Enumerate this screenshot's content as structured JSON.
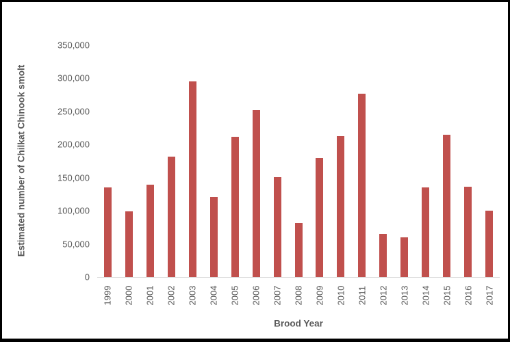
{
  "chart_data": {
    "type": "bar",
    "title": "",
    "categories": [
      "1999",
      "2000",
      "2001",
      "2002",
      "2003",
      "2004",
      "2005",
      "2006",
      "2007",
      "2008",
      "2009",
      "2010",
      "2011",
      "2012",
      "2013",
      "2014",
      "2015",
      "2016",
      "2017"
    ],
    "values": [
      135000,
      99000,
      139000,
      182000,
      295000,
      121000,
      212000,
      252000,
      151000,
      82000,
      180000,
      213000,
      277000,
      65000,
      60000,
      135000,
      215000,
      136000,
      100000
    ],
    "xlabel": "Brood Year",
    "ylabel": "Estimated number of Chilkat Chinook smolt",
    "ylim": [
      0,
      350000
    ],
    "ytick_step": 50000,
    "ytick_labels": [
      "0",
      "50,000",
      "100,000",
      "150,000",
      "200,000",
      "250,000",
      "300,000",
      "350,000"
    ],
    "grid": false,
    "legend": "none",
    "bar_color": "#c0504d",
    "axis_line_color": "#d9d9d9",
    "text_color": "#595959",
    "frame_border_color": "#000000",
    "background_color": "#ffffff"
  }
}
